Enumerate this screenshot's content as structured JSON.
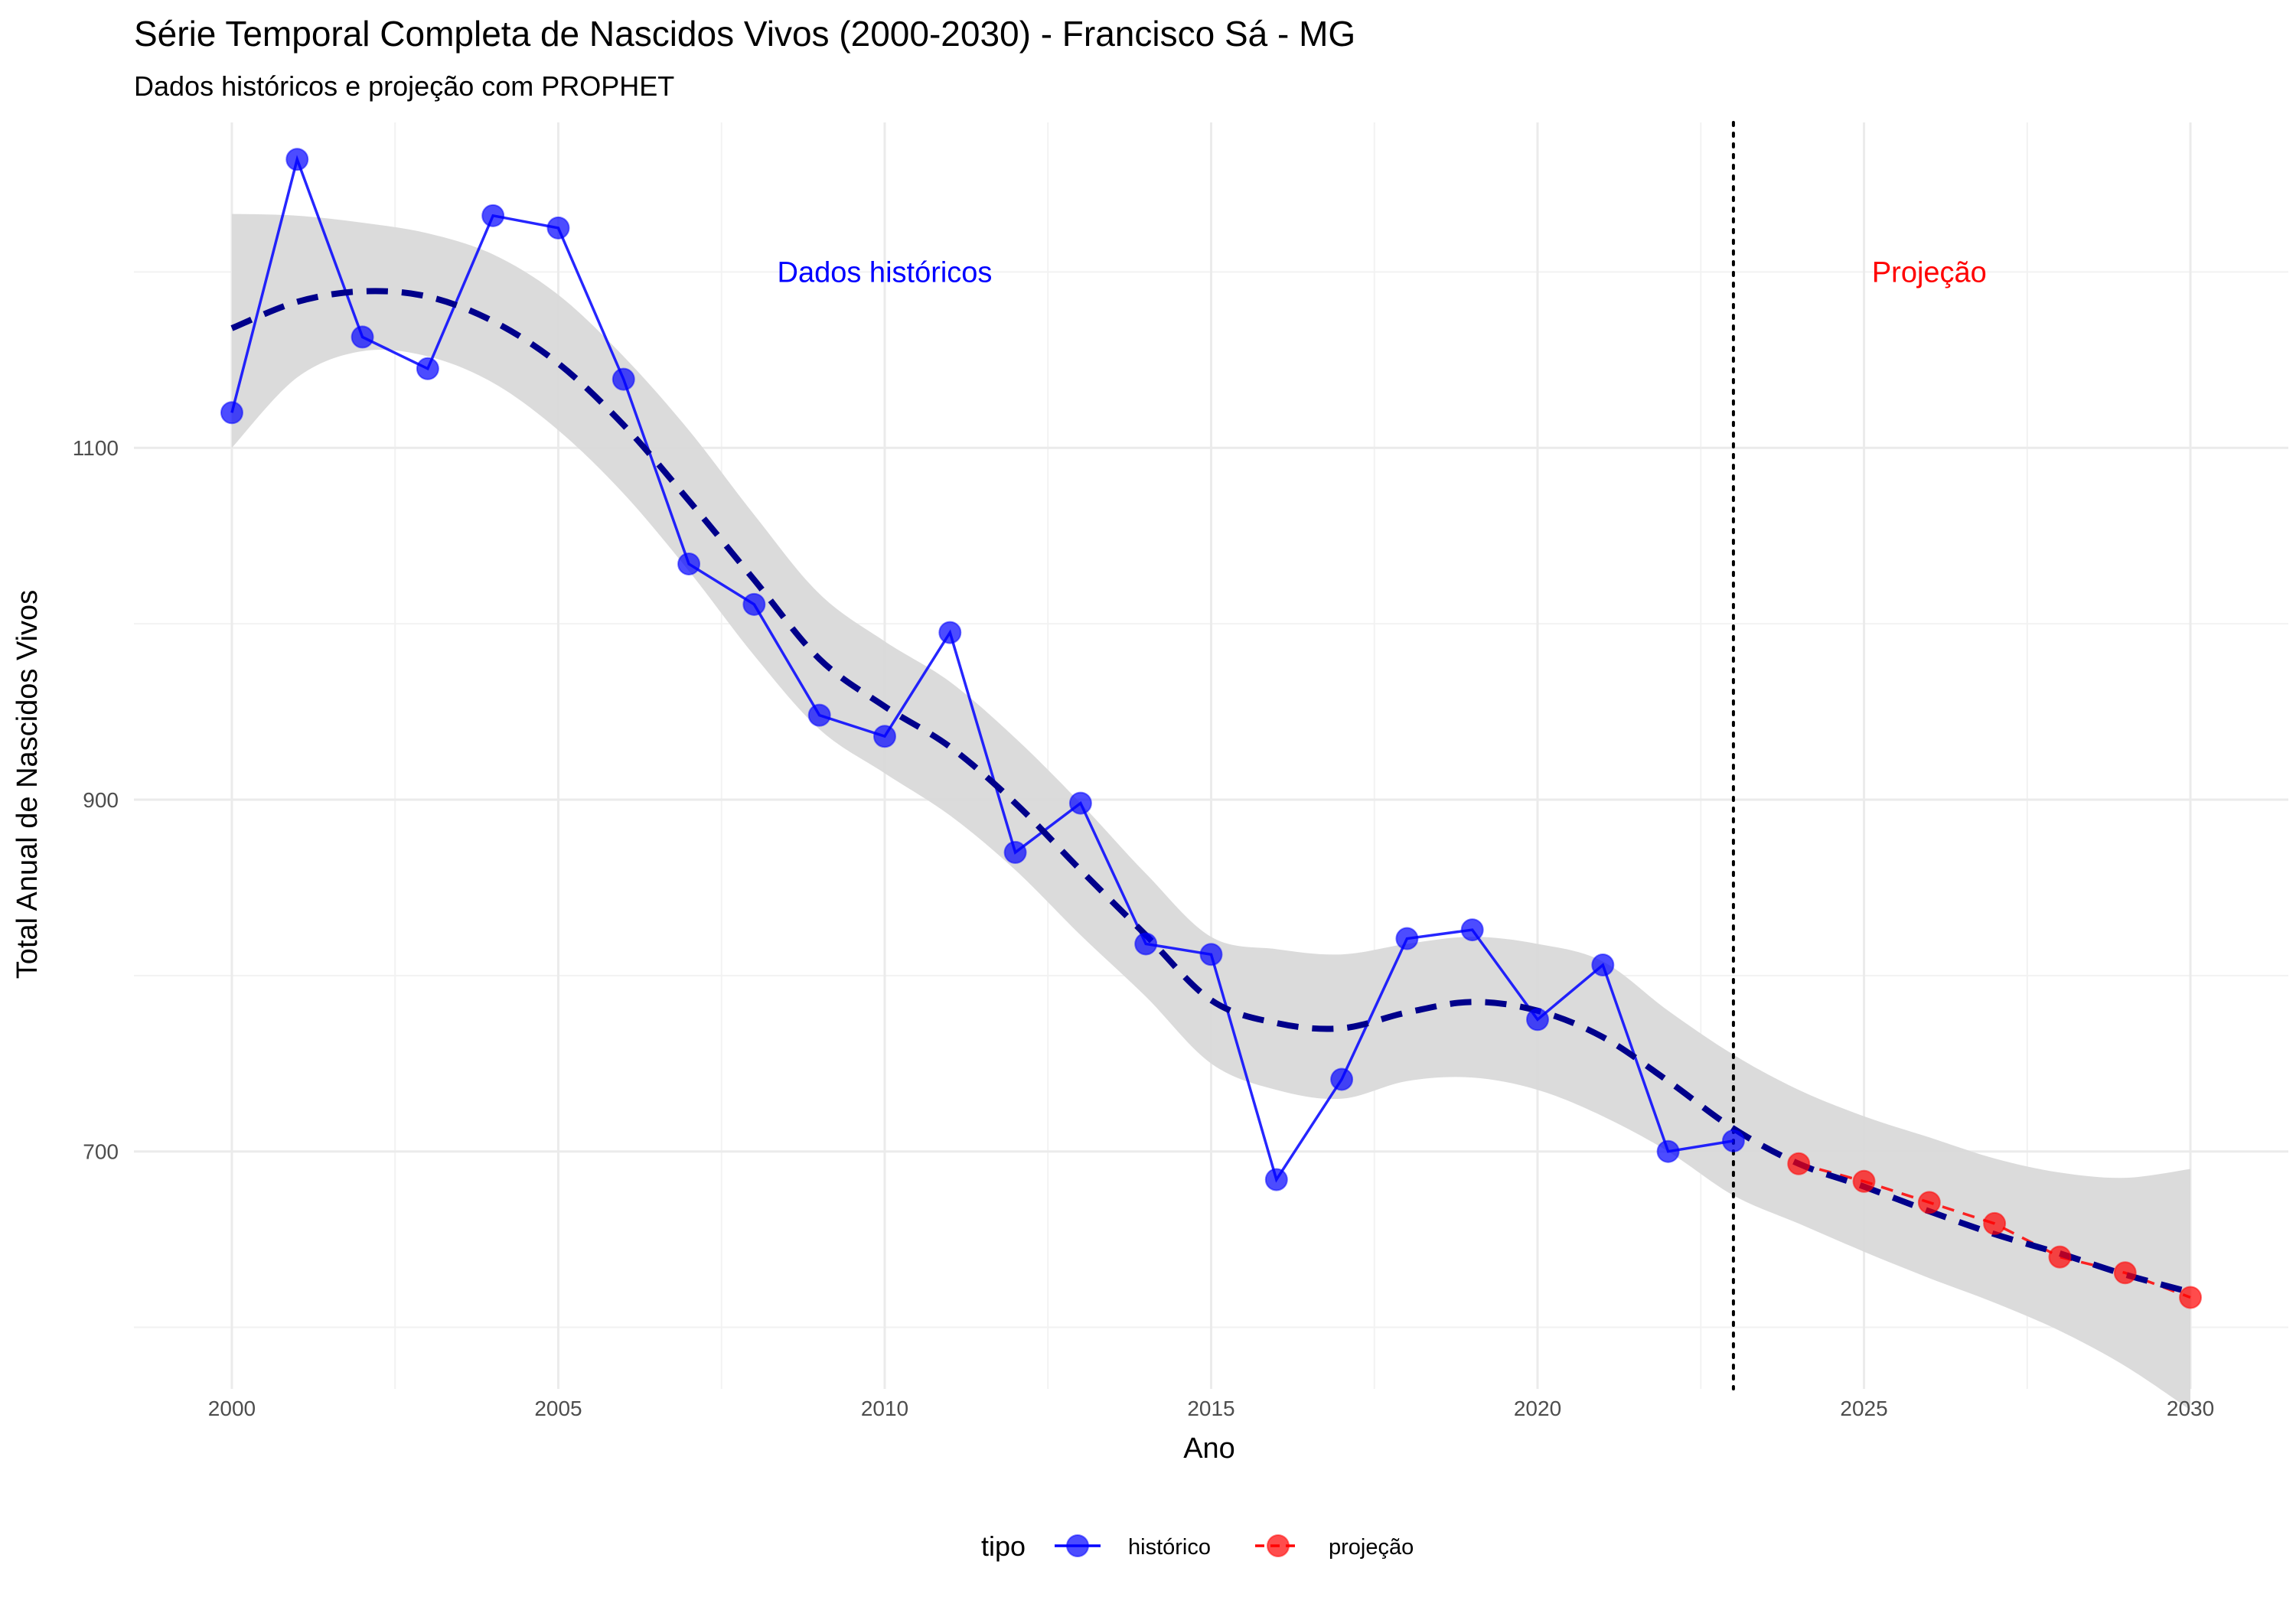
{
  "chart_data": {
    "type": "line",
    "title": "Série Temporal Completa de Nascidos Vivos (2000-2030) -  Francisco Sá - MG",
    "subtitle": "Dados históricos e projeção com PROPHET",
    "xlabel": "Ano",
    "ylabel": "Total Anual de Nascidos Vivos",
    "xlim": [
      1998.5,
      2031.5
    ],
    "ylim": [
      565,
      1285
    ],
    "x_ticks": [
      2000,
      2005,
      2010,
      2015,
      2020,
      2025,
      2030
    ],
    "y_ticks": [
      700,
      900,
      1100
    ],
    "grid": true,
    "vline_x": 2023,
    "annotations": [
      {
        "text": "Dados históricos",
        "x": 2010,
        "y": 1200,
        "color": "#0000ff"
      },
      {
        "text": "Projeção",
        "x": 2026,
        "y": 1200,
        "color": "#ff0000"
      }
    ],
    "legend": {
      "title": "tipo",
      "position": "bottom",
      "entries": [
        {
          "label": "histórico",
          "color": "#0000ff",
          "linestyle": "solid"
        },
        {
          "label": "projeção",
          "color": "#ff0000",
          "linestyle": "dashed"
        }
      ]
    },
    "series": [
      {
        "name": "histórico",
        "color": "#0000ff",
        "x": [
          2000,
          2001,
          2002,
          2003,
          2004,
          2005,
          2006,
          2007,
          2008,
          2009,
          2010,
          2011,
          2012,
          2013,
          2014,
          2015,
          2016,
          2017,
          2018,
          2019,
          2020,
          2021,
          2022,
          2023
        ],
        "values": [
          1120,
          1264,
          1163,
          1145,
          1232,
          1225,
          1139,
          1034,
          1011,
          948,
          936,
          995,
          870,
          898,
          818,
          812,
          684,
          741,
          821,
          826,
          775,
          806,
          700,
          706
        ]
      },
      {
        "name": "projeção",
        "color": "#ff0000",
        "x": [
          2024,
          2025,
          2026,
          2027,
          2028,
          2029,
          2030
        ],
        "values": [
          693,
          683,
          671,
          659,
          640,
          631,
          617
        ]
      }
    ],
    "trend": {
      "color": "#00008b",
      "x": [
        2000,
        2001,
        2002,
        2003,
        2004,
        2005,
        2006,
        2007,
        2008,
        2009,
        2010,
        2011,
        2012,
        2013,
        2014,
        2015,
        2016,
        2017,
        2018,
        2019,
        2020,
        2021,
        2022,
        2023,
        2024,
        2025,
        2026,
        2027,
        2028,
        2029,
        2030
      ],
      "values": [
        1168,
        1183,
        1189,
        1186,
        1172,
        1148,
        1113,
        1070,
        1025,
        980,
        953,
        930,
        898,
        860,
        823,
        786,
        773,
        770,
        779,
        785,
        780,
        765,
        740,
        713,
        693,
        680,
        666,
        653,
        642,
        630,
        620
      ]
    },
    "ribbon": {
      "color": "#d9d9d9",
      "x": [
        2000,
        2001,
        2002,
        2003,
        2004,
        2005,
        2006,
        2007,
        2008,
        2009,
        2010,
        2011,
        2012,
        2013,
        2014,
        2015,
        2016,
        2017,
        2018,
        2019,
        2020,
        2021,
        2022,
        2023,
        2024,
        2025,
        2026,
        2027,
        2028,
        2029,
        2030
      ],
      "upper": [
        1233,
        1232,
        1228,
        1222,
        1210,
        1187,
        1152,
        1110,
        1062,
        1017,
        990,
        967,
        935,
        898,
        858,
        822,
        815,
        812,
        818,
        822,
        818,
        808,
        780,
        755,
        735,
        720,
        708,
        696,
        688,
        685,
        690
      ],
      "lower": [
        1100,
        1140,
        1155,
        1152,
        1137,
        1110,
        1074,
        1030,
        982,
        940,
        915,
        891,
        860,
        823,
        788,
        750,
        735,
        730,
        740,
        742,
        735,
        720,
        700,
        675,
        659,
        643,
        628,
        614,
        598,
        578,
        553
      ]
    }
  }
}
